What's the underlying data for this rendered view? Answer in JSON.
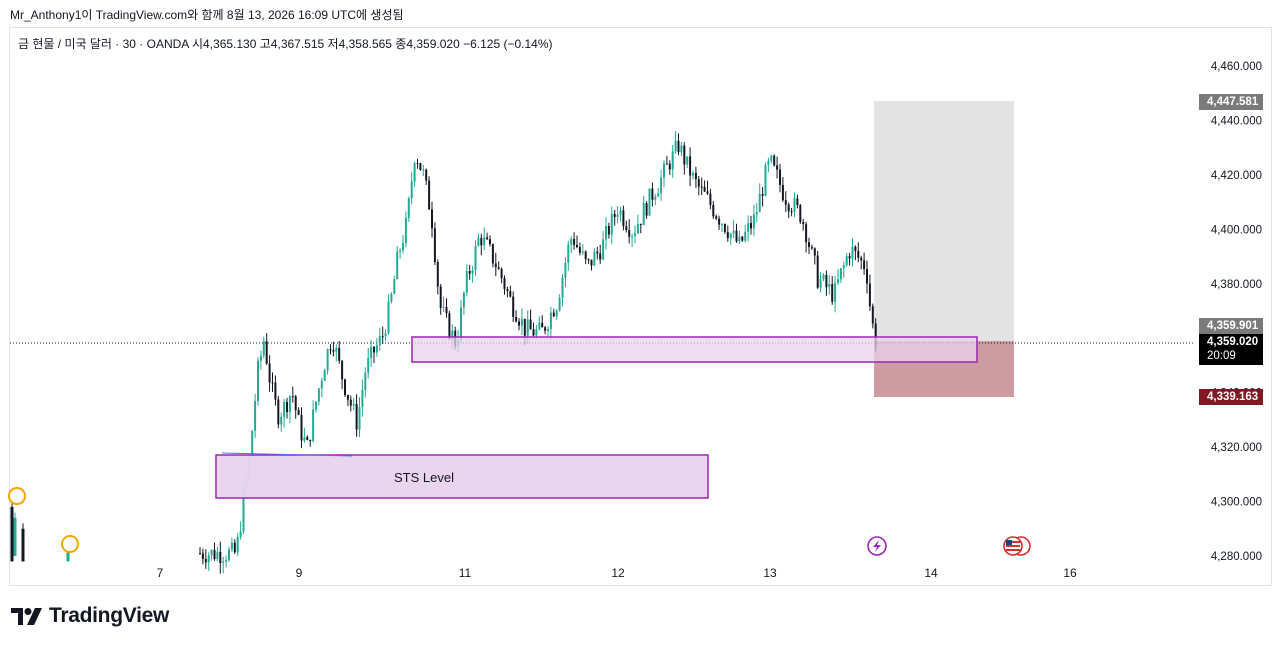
{
  "caption": "Mr_Anthony1이 TradingView.com와 함께 8월 13, 2026 16:09 UTC에 생성됨",
  "legend": {
    "symbol": "금 현물 / 미국 달러 · 30 · OANDA",
    "open": "시4,365.130",
    "high": "고4,367.515",
    "low": "저4,358.565",
    "close": "종4,359.020",
    "change": "−6.125 (−0.14%)"
  },
  "brand": {
    "name": "TradingView",
    "logo_icon": "tradingview-logo-icon"
  },
  "colors": {
    "up": "#22ab94",
    "down": "#131722",
    "zone_fill": "#e9d3ee",
    "zone_border": "#9c27b0",
    "target": "#e3e3e3",
    "stop": "#c9979b",
    "price_tag": "#000000",
    "stop_tag": "#801922",
    "target_tag": "#7a7a7a"
  },
  "tags": {
    "target": "4,447.581",
    "entry": "4,359.901",
    "last_price": "4,359.020",
    "countdown": "20:09",
    "stop": "4,339.163"
  },
  "events": {
    "lightning_icon": "lightning-event-icon",
    "flag_icon": "us-flag-event-icon",
    "earnings_icon": "orange-event-icon"
  },
  "chart_data": {
    "type": "candlestick",
    "ylim": [
      4280,
      4460
    ],
    "y_ticks": [
      4280,
      4300,
      4320,
      4340,
      4360,
      4380,
      4400,
      4420,
      4440,
      4460
    ],
    "y_tick_labels": [
      "4,280.000",
      "4,300.000",
      "4,320.000",
      "4,340.000",
      "4,360.000",
      "4,380.000",
      "4,400.000",
      "4,420.000",
      "4,440.000",
      "4,460.000"
    ],
    "x_tick_labels": [
      "7",
      "9",
      "11",
      "12",
      "13",
      "14",
      "16"
    ],
    "last_price": 4359.02,
    "annotations": [
      {
        "label": "STS Level",
        "type": "zone",
        "y_low": 4301,
        "y_high": 4316.5,
        "from_day": 8.4,
        "to_day": 12.6
      },
      {
        "label": "",
        "type": "zone",
        "y_low": 4352,
        "y_high": 4361.5,
        "from_day": 10.6,
        "to_day": 14.3
      }
    ],
    "position": {
      "type": "long",
      "entry": 4359.901,
      "target": 4447.581,
      "stop": 4339.163
    },
    "x_days": [
      8.1,
      8.2,
      8.3,
      8.4,
      8.5,
      8.6,
      8.7,
      8.8,
      8.9,
      9.0,
      9.1,
      9.2,
      9.3,
      9.4,
      9.5,
      9.6,
      9.7,
      9.8,
      9.9,
      10.0,
      10.1,
      10.2,
      10.3,
      10.4,
      10.5,
      10.6,
      10.7,
      10.8,
      10.9,
      11.0,
      11.1,
      11.2,
      11.3,
      11.4,
      11.5,
      11.6,
      11.7,
      11.8,
      11.9,
      12.0,
      12.1,
      12.2,
      12.3,
      12.4,
      12.5,
      12.6,
      12.7,
      12.8,
      12.9,
      13.0,
      13.1,
      13.2,
      13.3,
      13.4,
      13.5,
      13.6,
      13.65
    ],
    "closes": [
      4281,
      4300,
      4318,
      4346,
      4360,
      4342,
      4332,
      4335,
      4341,
      4328,
      4320,
      4336,
      4350,
      4361,
      4348,
      4338,
      4329,
      4348,
      4355,
      4360,
      4372,
      4391,
      4402,
      4429,
      4420,
      4405,
      4372,
      4364,
      4358,
      4378,
      4398,
      4388,
      4374,
      4363,
      4362,
      4373,
      4398,
      4386,
      4394,
      4408,
      4399,
      4410,
      4420,
      4431,
      4418,
      4410,
      4402,
      4394,
      4404,
      4425,
      4412,
      4405,
      4382,
      4376,
      4393,
      4386,
      4359
    ]
  }
}
